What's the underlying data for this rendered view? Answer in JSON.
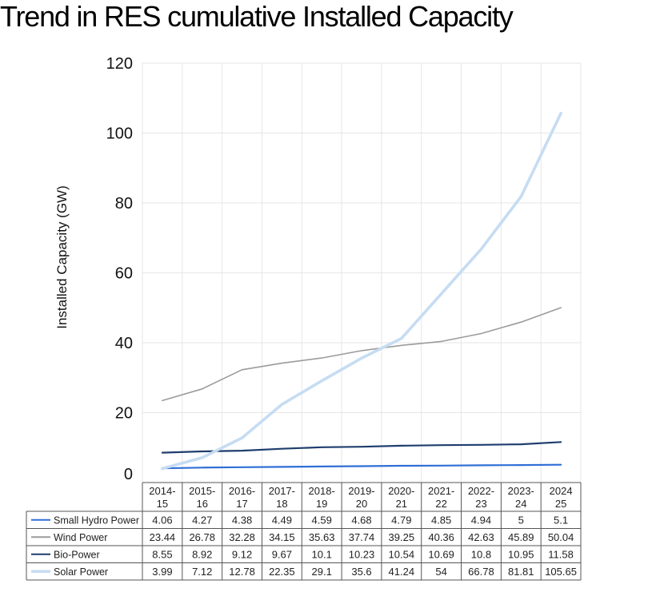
{
  "title": "Trend in RES cumulative Installed Capacity",
  "chart_data": {
    "type": "line",
    "title": "Trend in RES cumulative Installed Capacity",
    "ylabel": "Installed Capacity  (GW)",
    "ylim": [
      0,
      120
    ],
    "yticks": [
      0,
      20,
      40,
      60,
      80,
      100,
      120
    ],
    "grid": true,
    "legend_placement": "data-table-left",
    "categories": [
      [
        "2014-",
        "15"
      ],
      [
        "2015-",
        "16"
      ],
      [
        "2016-",
        "17"
      ],
      [
        "2017-",
        "18"
      ],
      [
        "2018-",
        "19"
      ],
      [
        "2019-",
        "20"
      ],
      [
        "2020-",
        "21"
      ],
      [
        "2021-",
        "22"
      ],
      [
        "2022-",
        "23"
      ],
      [
        "2023-",
        "24"
      ],
      [
        "2024",
        "25"
      ]
    ],
    "series": [
      {
        "name": "Small Hydro Power",
        "color": "#2f6fd6",
        "values": [
          4.06,
          4.27,
          4.38,
          4.49,
          4.59,
          4.68,
          4.79,
          4.85,
          4.94,
          5,
          5.1
        ],
        "labels": [
          "4.06",
          "4.27",
          "4.38",
          "4.49",
          "4.59",
          "4.68",
          "4.79",
          "4.85",
          "4.94",
          "5",
          "5.1"
        ]
      },
      {
        "name": "Wind Power",
        "color": "#9b9b9b",
        "values": [
          23.44,
          26.78,
          32.28,
          34.15,
          35.63,
          37.74,
          39.25,
          40.36,
          42.63,
          45.89,
          50.04
        ],
        "labels": [
          "23.44",
          "26.78",
          "32.28",
          "34.15",
          "35.63",
          "37.74",
          "39.25",
          "40.36",
          "42.63",
          "45.89",
          "50.04"
        ]
      },
      {
        "name": "Bio-Power",
        "color": "#1f3d6e",
        "values": [
          8.55,
          8.92,
          9.12,
          9.67,
          10.1,
          10.23,
          10.54,
          10.69,
          10.8,
          10.95,
          11.58
        ],
        "labels": [
          "8.55",
          "8.92",
          "9.12",
          "9.67",
          "10.1",
          "10.23",
          "10.54",
          "10.69",
          "10.8",
          "10.95",
          "11.58"
        ]
      },
      {
        "name": "Solar Power",
        "color": "#c6dcf2",
        "values": [
          3.99,
          7.12,
          12.78,
          22.35,
          29.1,
          35.6,
          41.24,
          54,
          66.78,
          81.81,
          105.65
        ],
        "labels": [
          "3.99",
          "7.12",
          "12.78",
          "22.35",
          "29.1",
          "35.6",
          "41.24",
          "54",
          "66.78",
          "81.81",
          "105.65"
        ]
      }
    ]
  }
}
